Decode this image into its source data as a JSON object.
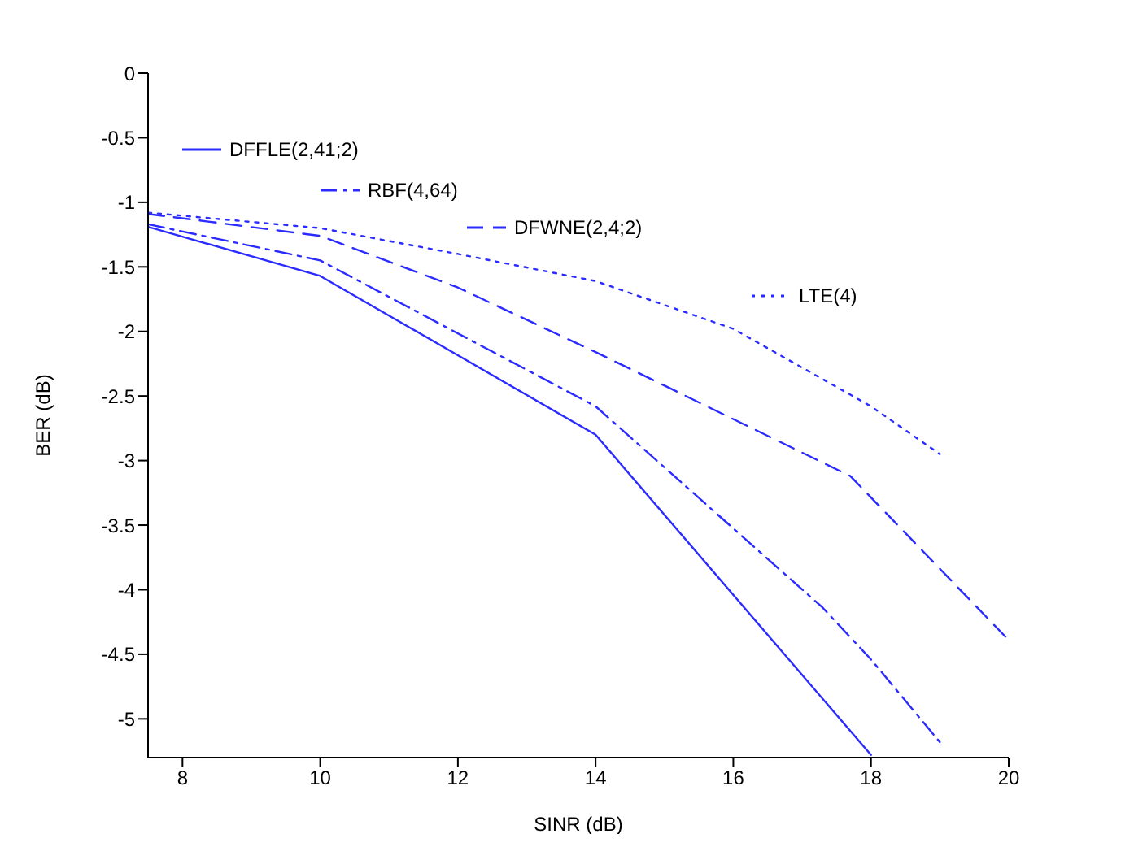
{
  "chart_data": {
    "type": "line",
    "xlabel": "SINR (dB)",
    "ylabel": "BER (dB)",
    "xlim": [
      7.5,
      20
    ],
    "xticks": [
      8,
      10,
      12,
      14,
      16,
      18,
      20
    ],
    "ylim": [
      -5.3,
      0
    ],
    "yticks": [
      -5,
      -4.5,
      -4,
      -3.5,
      -3,
      -2.5,
      -2,
      -1.5,
      -1,
      -0.5,
      0
    ],
    "grid": false,
    "legend": "top left",
    "marker": "none",
    "series": [
      {
        "name": "DFFLE(2,41;2)",
        "color": "#2b2bff",
        "line_style": "solid",
        "x": [
          7.5,
          10,
          14,
          18
        ],
        "values": [
          -1.19,
          -1.57,
          -2.8,
          -5.28
        ]
      },
      {
        "name": "RBF(4,64)",
        "color": "#2b2bff",
        "line_style": "dashdot",
        "x": [
          7.5,
          10,
          14,
          17.3,
          18,
          19
        ],
        "values": [
          -1.17,
          -1.45,
          -2.58,
          -4.14,
          -4.54,
          -5.18
        ]
      },
      {
        "name": "DFWNE(2,4;2)",
        "color": "#2b2bff",
        "line_style": "dashed",
        "x": [
          7.5,
          10,
          12,
          14,
          17.7,
          20
        ],
        "values": [
          -1.09,
          -1.26,
          -1.66,
          -2.16,
          -3.12,
          -4.39
        ]
      },
      {
        "name": "LTE(4)",
        "color": "#2b2bff",
        "line_style": "dotted",
        "x": [
          7.5,
          10,
          12,
          14,
          16,
          18,
          19
        ],
        "values": [
          -1.08,
          -1.2,
          -1.4,
          -1.61,
          -1.98,
          -2.58,
          -2.95
        ]
      }
    ]
  }
}
